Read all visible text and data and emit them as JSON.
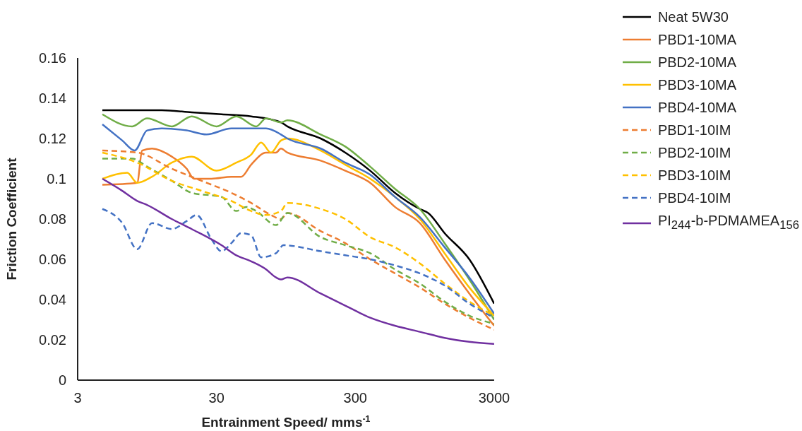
{
  "chart_data": {
    "type": "line",
    "xlabel": "Entrainment Speed/ mms$^{-1}$",
    "ylabel": "Friction Coefficient",
    "log": "x",
    "xlim": [
      3,
      3000
    ],
    "xticks": [
      3,
      30,
      300,
      3000
    ],
    "ylim": [
      0,
      0.16
    ],
    "yticks": [
      0,
      0.02,
      0.04,
      0.06,
      0.08,
      0.1,
      0.12,
      0.14,
      0.16
    ],
    "legend": "top right",
    "series": [
      {
        "name": "Neat 5W30",
        "color": "#000000",
        "line_style": "solid",
        "x": [
          4.52,
          7.41,
          12.1,
          19.9,
          32.6,
          53.3,
          87.4,
          97.2,
          169,
          254,
          384,
          579,
          874,
          1005,
          1319,
          1988,
          3000
        ],
        "values": [
          0.134,
          0.134,
          0.134,
          0.133,
          0.132,
          0.131,
          0.128,
          0.126,
          0.12,
          0.113,
          0.104,
          0.093,
          0.085,
          0.083,
          0.073,
          0.06,
          0.038
        ]
      },
      {
        "name": "PBD1-10MA",
        "color": "#ed7d31",
        "line_style": "solid",
        "x": [
          4.52,
          8.05,
          8.74,
          10.3,
          14.3,
          18.3,
          20.7,
          27.6,
          38.4,
          45.2,
          53.3,
          68.3,
          80.5,
          87.4,
          97.2,
          169,
          254,
          384,
          579,
          874,
          1319,
          1988,
          3000
        ],
        "values": [
          0.097,
          0.098,
          0.114,
          0.115,
          0.111,
          0.105,
          0.1,
          0.1,
          0.101,
          0.101,
          0.107,
          0.113,
          0.113,
          0.115,
          0.113,
          0.109,
          0.104,
          0.098,
          0.086,
          0.078,
          0.06,
          0.043,
          0.027
        ]
      },
      {
        "name": "PBD2-10MA",
        "color": "#70ad47",
        "line_style": "solid",
        "x": [
          4.52,
          7.41,
          9.49,
          14.3,
          19.9,
          30,
          41.7,
          57.9,
          68.3,
          87.4,
          97.2,
          169,
          254,
          384,
          579,
          874,
          1319,
          1988,
          3000
        ],
        "values": [
          0.132,
          0.126,
          0.13,
          0.126,
          0.131,
          0.126,
          0.131,
          0.126,
          0.13,
          0.128,
          0.129,
          0.122,
          0.116,
          0.106,
          0.095,
          0.085,
          0.068,
          0.05,
          0.03
        ]
      },
      {
        "name": "PBD3-10MA",
        "color": "#ffc000",
        "line_style": "solid",
        "x": [
          4.52,
          6.83,
          8.05,
          10.3,
          14.3,
          19.9,
          30,
          41.7,
          53.3,
          62.9,
          74.1,
          87.4,
          97.2,
          169,
          254,
          384,
          579,
          874,
          1319,
          1988,
          3000
        ],
        "values": [
          0.1,
          0.103,
          0.098,
          0.101,
          0.108,
          0.111,
          0.104,
          0.108,
          0.112,
          0.118,
          0.113,
          0.119,
          0.12,
          0.114,
          0.107,
          0.1,
          0.091,
          0.08,
          0.063,
          0.046,
          0.032
        ]
      },
      {
        "name": "PBD4-10MA",
        "color": "#4472c4",
        "line_style": "solid",
        "x": [
          4.52,
          6.29,
          7.72,
          9.49,
          12.1,
          18.3,
          25.4,
          38.4,
          68.3,
          87.4,
          97.2,
          169,
          254,
          384,
          579,
          874,
          1319,
          1988,
          3000
        ],
        "values": [
          0.127,
          0.119,
          0.114,
          0.124,
          0.125,
          0.124,
          0.122,
          0.125,
          0.125,
          0.122,
          0.12,
          0.115,
          0.108,
          0.102,
          0.091,
          0.081,
          0.066,
          0.051,
          0.033
        ]
      },
      {
        "name": "PBD1-10IM",
        "color": "#ed7d31",
        "line_style": "dashed",
        "x": [
          4.52,
          8.05,
          14.3,
          23.4,
          38.4,
          53.3,
          74.1,
          87.4,
          97.2,
          169,
          254,
          384,
          579,
          874,
          1319,
          1988,
          3000
        ],
        "values": [
          0.114,
          0.113,
          0.105,
          0.099,
          0.093,
          0.088,
          0.082,
          0.08,
          0.083,
          0.074,
          0.068,
          0.06,
          0.053,
          0.046,
          0.038,
          0.031,
          0.025
        ]
      },
      {
        "name": "PBD2-10IM",
        "color": "#70ad47",
        "line_style": "dashed",
        "x": [
          4.52,
          7.41,
          9.49,
          14.3,
          19.9,
          32.6,
          41.7,
          49.1,
          57.9,
          80.5,
          97.2,
          169,
          254,
          384,
          579,
          874,
          1319,
          1988,
          3000
        ],
        "values": [
          0.11,
          0.11,
          0.106,
          0.099,
          0.093,
          0.091,
          0.084,
          0.086,
          0.084,
          0.077,
          0.083,
          0.071,
          0.067,
          0.063,
          0.055,
          0.048,
          0.039,
          0.032,
          0.028
        ]
      },
      {
        "name": "PBD3-10IM",
        "color": "#ffc000",
        "line_style": "dashed",
        "x": [
          4.52,
          8.05,
          14.3,
          23.4,
          38.4,
          53.3,
          68.3,
          87.4,
          97.2,
          169,
          254,
          384,
          579,
          874,
          1319,
          1988,
          3000
        ],
        "values": [
          0.113,
          0.108,
          0.099,
          0.094,
          0.089,
          0.084,
          0.082,
          0.084,
          0.088,
          0.085,
          0.08,
          0.071,
          0.066,
          0.058,
          0.048,
          0.039,
          0.032
        ]
      },
      {
        "name": "PBD4-10IM",
        "color": "#4472c4",
        "line_style": "dashed",
        "x": [
          4.52,
          6.29,
          8.05,
          10.3,
          14.3,
          18.3,
          21.6,
          27.6,
          32.6,
          38.4,
          45.2,
          53.3,
          62.9,
          80.5,
          91.1,
          169,
          254,
          384,
          579,
          874,
          1319,
          1988,
          3000
        ],
        "values": [
          0.085,
          0.078,
          0.065,
          0.078,
          0.075,
          0.079,
          0.082,
          0.07,
          0.064,
          0.068,
          0.073,
          0.072,
          0.061,
          0.063,
          0.067,
          0.064,
          0.062,
          0.06,
          0.057,
          0.053,
          0.047,
          0.038,
          0.031
        ]
      },
      {
        "name": "PI$_{244}$-b-PDMAMEA$_{156}$",
        "color": "#7030a0",
        "line_style": "solid",
        "x": [
          4.52,
          6.29,
          8.05,
          9.49,
          14.3,
          19.9,
          32.6,
          41.7,
          53.3,
          68.3,
          80.5,
          87.4,
          97.2,
          169,
          254,
          384,
          579,
          874,
          1319,
          1988,
          3000
        ],
        "values": [
          0.1,
          0.094,
          0.089,
          0.087,
          0.08,
          0.075,
          0.067,
          0.062,
          0.059,
          0.055,
          0.051,
          0.05,
          0.051,
          0.043,
          0.037,
          0.031,
          0.027,
          0.024,
          0.021,
          0.019,
          0.018
        ]
      }
    ]
  }
}
